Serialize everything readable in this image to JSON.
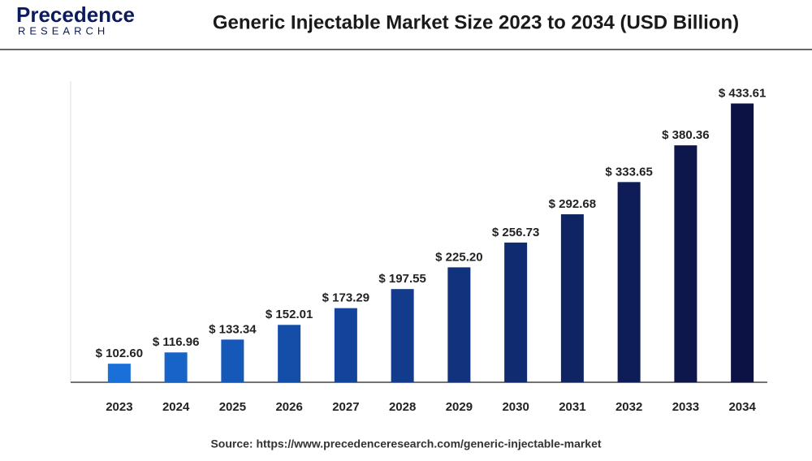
{
  "header": {
    "logo_name": "Precedence",
    "logo_sub": "RESEARCH"
  },
  "chart_data": {
    "type": "bar",
    "title": "Generic Injectable Market Size 2023 to 2034 (USD Billion)",
    "categories": [
      "2023",
      "2024",
      "2025",
      "2026",
      "2027",
      "2028",
      "2029",
      "2030",
      "2031",
      "2032",
      "2033",
      "2034"
    ],
    "values": [
      102.6,
      116.96,
      133.34,
      152.01,
      173.29,
      197.55,
      225.2,
      256.73,
      292.68,
      333.65,
      380.36,
      433.61
    ],
    "value_labels": [
      "$ 102.60",
      "$ 116.96",
      "$ 133.34",
      "$ 152.01",
      "$ 173.29",
      "$ 197.55",
      "$ 225.20",
      "$ 256.73",
      "$ 292.68",
      "$ 333.65",
      "$ 380.36",
      "$ 433.61"
    ],
    "colors": [
      "#1a6fd8",
      "#1763c8",
      "#1558b8",
      "#144ea9",
      "#13449b",
      "#123b8c",
      "#11337e",
      "#102b70",
      "#0f2463",
      "#0e1d57",
      "#0d174c",
      "#0c1243"
    ],
    "ylim": [
      79,
      462
    ],
    "source": "Source: https://www.precedenceresearch.com/generic-injectable-market"
  }
}
